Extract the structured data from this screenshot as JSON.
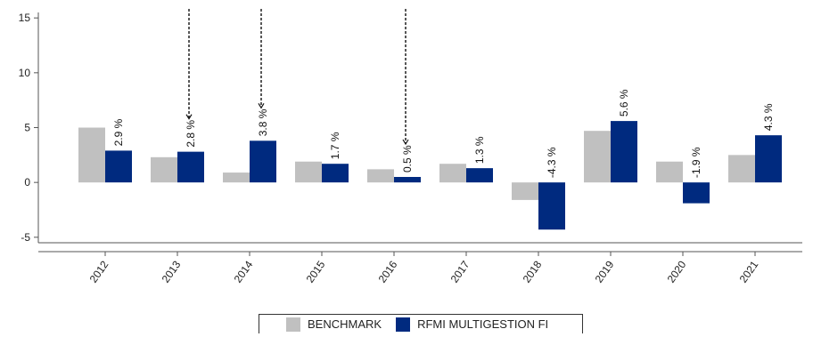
{
  "chart_data": {
    "type": "bar",
    "categories": [
      "2012",
      "2013",
      "2014",
      "2015",
      "2016",
      "2017",
      "2018",
      "2019",
      "2020",
      "2021"
    ],
    "series": [
      {
        "name": "BENCHMARK",
        "color": "#c0c0c0",
        "values": [
          5.0,
          2.3,
          0.9,
          1.9,
          1.2,
          1.7,
          -1.6,
          4.7,
          1.9,
          2.5
        ]
      },
      {
        "name": "RFMI MULTIGESTION FI",
        "color": "#002a7f",
        "values": [
          2.9,
          2.8,
          3.8,
          1.7,
          0.5,
          1.3,
          -4.3,
          5.6,
          -1.9,
          4.3
        ],
        "labels": [
          "2.9 %",
          "2.8 %",
          "3.8 %",
          "1.7 %",
          "0.5 %",
          "1.3 %",
          "-4.3 %",
          "5.6 %",
          "-1.9 %",
          "4.3 %"
        ]
      }
    ],
    "yticks": [
      -5,
      0,
      5,
      10,
      15
    ],
    "ylim": [
      -5.5,
      15.5
    ],
    "dashed_marker_categories": [
      "2013",
      "2014",
      "2016"
    ],
    "legend": "bottom-center"
  }
}
